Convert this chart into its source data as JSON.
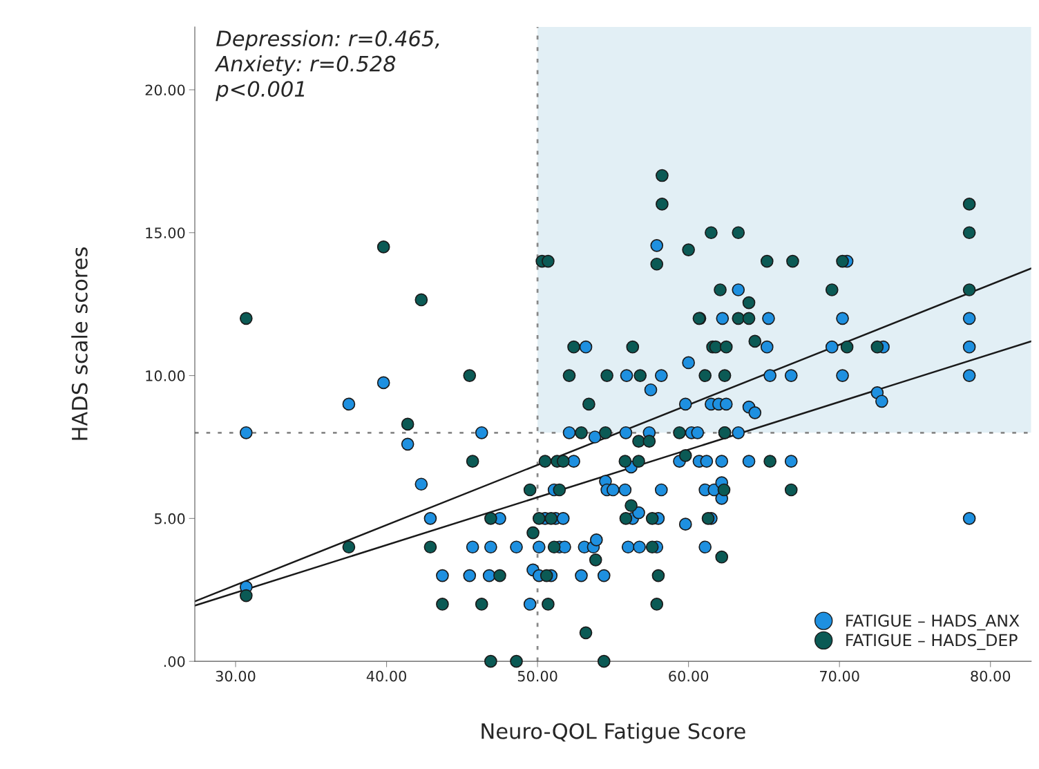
{
  "chart_data": {
    "type": "scatter",
    "xlabel": "Neuro-QOL Fatigue Score",
    "ylabel": "HADS scale scores",
    "annotations": [
      "Depression: r=0.465,\nAnxiety: r=0.528\np<0.001"
    ],
    "xlim": [
      27.3,
      82.7
    ],
    "ylim": [
      0,
      22.2
    ],
    "xticks": [
      {
        "value": 30,
        "label": "30.00"
      },
      {
        "value": 40,
        "label": "40.00"
      },
      {
        "value": 50,
        "label": "50.00"
      },
      {
        "value": 60,
        "label": "60.00"
      },
      {
        "value": 70,
        "label": "70.00"
      },
      {
        "value": 80,
        "label": "80.00"
      }
    ],
    "yticks": [
      {
        "value": 0,
        "label": ".00"
      },
      {
        "value": 5,
        "label": "5.00"
      },
      {
        "value": 10,
        "label": "10.00"
      },
      {
        "value": 15,
        "label": "15.00"
      },
      {
        "value": 20,
        "label": "20.00"
      }
    ],
    "ref_lines": [
      {
        "axis": "x",
        "value": 50,
        "color": "#888888",
        "line_style": "dotted"
      },
      {
        "axis": "y",
        "value": 8,
        "color": "#888888",
        "line_style": "dotted"
      }
    ],
    "bands": [
      {
        "axis": "y",
        "from": 8,
        "to": 22.2,
        "color": "#e2eff5"
      }
    ],
    "grid": false,
    "legend": "bottom right",
    "series": [
      {
        "name": "FATIGUE – HADS_ANX",
        "marker": "circle",
        "color": "#1e90e0",
        "x": [
          30.7,
          30.7,
          37.5,
          39.8,
          41.4,
          42.3,
          42.9,
          43.7,
          46.3,
          45.7,
          45.5,
          47.5,
          46.9,
          46.8,
          48.6,
          49.5,
          49.7,
          52.1,
          53.8,
          55.85,
          57.4,
          60.2,
          60.6,
          62.4,
          63.3,
          52.4,
          56.2,
          59.4,
          60.7,
          61.2,
          62.2,
          64.0,
          66.8,
          51.1,
          54.5,
          54.6,
          55.0,
          55.8,
          58.2,
          61.1,
          61.7,
          62.2,
          62.2,
          50.5,
          51.2,
          51.7,
          56.3,
          56.7,
          58.0,
          59.8,
          61.5,
          50.1,
          51.45,
          51.8,
          53.1,
          53.7,
          53.9,
          56.0,
          56.75,
          57.9,
          61.1,
          50.1,
          50.9,
          52.9,
          54.4,
          57.9,
          63.3,
          60.75,
          62.25,
          65.3,
          53.2,
          65.2,
          60.0,
          55.9,
          58.2,
          65.4,
          66.8,
          57.5,
          59.8,
          61.5,
          62.0,
          62.5,
          64.0,
          64.4,
          70.5,
          70.2,
          78.6,
          69.5,
          72.9,
          78.6,
          70.2,
          78.6,
          72.5,
          72.8,
          78.6
        ],
        "values": [
          8,
          2.6,
          9,
          9.75,
          7.6,
          6.2,
          5,
          3,
          8,
          4,
          3,
          5,
          4,
          3,
          4,
          2,
          3.2,
          8,
          7.85,
          8,
          8,
          8,
          8,
          8,
          8,
          7,
          6.8,
          7,
          7,
          7,
          7,
          7,
          7,
          6,
          6.3,
          6,
          6,
          6,
          6,
          6,
          6,
          6.25,
          5.7,
          5,
          5,
          5,
          5,
          5.2,
          5,
          4.8,
          5,
          4,
          4,
          4,
          4,
          4,
          4.25,
          4,
          4,
          4,
          4,
          3,
          3,
          3,
          3,
          14.55,
          13,
          12,
          12,
          12,
          11,
          11,
          10.45,
          10,
          10,
          10,
          10,
          9.5,
          9,
          9,
          9,
          9,
          8.9,
          8.7,
          14,
          12,
          12,
          11,
          11,
          11,
          10,
          10,
          9.4,
          9.1,
          5
        ]
      },
      {
        "name": "FATIGUE – HADS_DEP",
        "marker": "circle",
        "color": "#0b5a55",
        "x": [
          30.7,
          30.7,
          37.5,
          39.8,
          41.4,
          42.3,
          42.9,
          43.7,
          45.5,
          45.7,
          46.3,
          46.9,
          47.5,
          46.9,
          48.6,
          49.5,
          49.7,
          52.9,
          54.5,
          56.7,
          57.4,
          59.4,
          62.4,
          50.5,
          51.3,
          51.7,
          55.8,
          56.7,
          59.8,
          65.4,
          51.45,
          62.35,
          66.8,
          50.1,
          50.9,
          55.85,
          56.2,
          57.6,
          61.3,
          51.1,
          53.85,
          57.6,
          62.2,
          50.6,
          58.0,
          50.7,
          57.9,
          53.2,
          54.4,
          58.25,
          58.25,
          61.5,
          63.3,
          60.0,
          57.9,
          50.3,
          50.7,
          65.2,
          66.9,
          62.1,
          64.0,
          60.7,
          63.3,
          64.0,
          64.4,
          52.4,
          56.3,
          61.6,
          61.8,
          62.5,
          52.1,
          54.6,
          56.8,
          61.1,
          62.4,
          53.4,
          78.6,
          78.6,
          70.2,
          69.5,
          78.6,
          70.5,
          72.5
        ],
        "values": [
          12,
          2.3,
          4,
          14.5,
          8.3,
          12.65,
          4,
          2,
          10,
          7,
          2,
          5,
          3,
          0,
          0,
          6,
          4.5,
          8,
          8,
          7.7,
          7.7,
          8,
          8,
          7,
          7,
          7,
          7,
          7,
          7.2,
          7,
          6,
          6,
          6,
          5,
          5,
          5,
          5.45,
          5,
          5,
          4,
          3.55,
          4,
          3.65,
          3,
          3,
          2,
          2,
          1,
          0,
          17,
          16,
          15,
          15,
          14.4,
          13.9,
          14,
          14,
          14,
          14,
          13,
          12.55,
          12,
          12,
          12,
          11.2,
          11,
          11,
          11,
          11,
          11,
          10,
          10,
          10,
          10,
          10,
          9,
          16,
          15,
          14,
          13,
          13,
          11,
          11
        ]
      },
      {
        "type": "line",
        "marker": "none",
        "color": "#1a1a1a",
        "x": [
          27.3,
          82.7
        ],
        "values": [
          2.1,
          13.75
        ]
      },
      {
        "type": "line",
        "marker": "none",
        "color": "#1a1a1a",
        "x": [
          27.3,
          82.7
        ],
        "values": [
          1.95,
          11.2
        ]
      }
    ]
  }
}
